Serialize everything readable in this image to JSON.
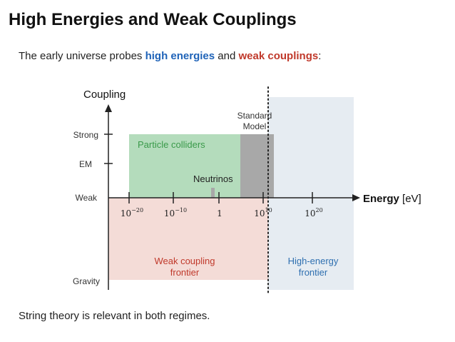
{
  "title": "High Energies and Weak Couplings",
  "subtitle": {
    "before": "The early universe probes ",
    "energy": "high energies",
    "middle": " and ",
    "coupling": "weak couplings",
    "after": ":"
  },
  "footer": "String theory is relevant in both regimes.",
  "diagram": {
    "y_axis_label": "Coupling",
    "x_axis_label_bold": "Energy",
    "x_axis_unit": " [eV]",
    "y_ticks": [
      "Strong",
      "EM",
      "Weak",
      "Gravity"
    ],
    "x_ticks": [
      {
        "base": "10",
        "exp": "−20"
      },
      {
        "base": "10",
        "exp": "−10"
      },
      {
        "base": "1",
        "exp": ""
      },
      {
        "base": "10",
        "exp": "10"
      },
      {
        "base": "10",
        "exp": "20"
      }
    ],
    "regions": {
      "colliders": "Particle colliders",
      "standard_model_line1": "Standard",
      "standard_model_line2": "Model",
      "neutrinos": "Neutrinos",
      "weak_frontier_line1": "Weak coupling",
      "weak_frontier_line2": "frontier",
      "high_frontier_line1": "High-energy",
      "high_frontier_line2": "frontier"
    },
    "colors": {
      "colliders": "#b4dcbc",
      "standard_model": "#a8a8a8",
      "weak_frontier": "#f4dcd7",
      "high_frontier": "#e6ecf2",
      "green_text": "#3a9a4a",
      "red_text": "#c0392b",
      "blue_text": "#2e6fb0"
    }
  }
}
